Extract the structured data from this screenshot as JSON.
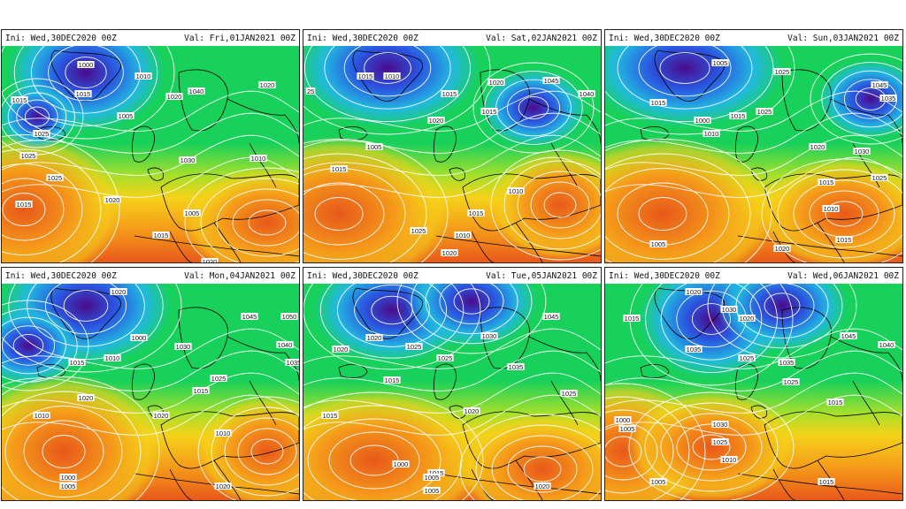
{
  "panels": [
    {
      "init": "Ini:  Wed,30DEC2020  00Z",
      "valid": "Val:  Fri,01JAN2021  00Z",
      "isobars": [
        "1000",
        "1015",
        "1015",
        "1025",
        "1025",
        "1010",
        "1020",
        "1040",
        "1020",
        "1025",
        "1020",
        "1030",
        "1010",
        "1005",
        "1015",
        "1020",
        "1015",
        "1005"
      ]
    },
    {
      "init": "Ini:  Wed,30DEC2020  00Z",
      "valid": "Val:  Sat,02JAN2021  00Z",
      "isobars": [
        "1015",
        "1010",
        "1015",
        "1020",
        "1045",
        "1040",
        "1020",
        "1015",
        "1005",
        "1015",
        "1010",
        "1015",
        "1010",
        "1025",
        "1020",
        "25"
      ]
    },
    {
      "init": "Ini:  Wed,30DEC2020  00Z",
      "valid": "Val:  Sun,03JAN2021  00Z",
      "isobars": [
        "1005",
        "1025",
        "1045",
        "1035",
        "1015",
        "1000",
        "1010",
        "1015",
        "1025",
        "1020",
        "1030",
        "1025",
        "1015",
        "1010",
        "1005",
        "1020",
        "1010",
        "1015"
      ]
    },
    {
      "init": "Ini:  Wed,30DEC2020  00Z",
      "valid": "Val:  Mon,04JAN2021  00Z",
      "isobars": [
        "1020",
        "1045",
        "1050",
        "1040",
        "1035",
        "1030",
        "1000",
        "1015",
        "1010",
        "1020",
        "1015",
        "1020",
        "1025",
        "1010",
        "1010",
        "1000",
        "1005",
        "1020"
      ]
    },
    {
      "init": "Ini:  Wed,30DEC2020  00Z",
      "valid": "Val:  Tue,05JAN2021  00Z",
      "isobars": [
        "1045",
        "1020",
        "1020",
        "1030",
        "1025",
        "1035",
        "1015",
        "1025",
        "1020",
        "1025",
        "1015",
        "1000",
        "1015",
        "1005",
        "1020",
        "1005"
      ]
    },
    {
      "init": "Ini:  Wed,30DEC2020  00Z",
      "valid": "Val:  Wed,06JAN2021  00Z",
      "isobars": [
        "1020",
        "1030",
        "1020",
        "1015",
        "1035",
        "1045",
        "1040",
        "1025",
        "1035",
        "1025",
        "1030",
        "1015",
        "1000",
        "1005",
        "1025",
        "1010",
        "1005",
        "1015"
      ]
    }
  ],
  "colors": {
    "low_deep": "#4b0b8c",
    "low": "#2a56e0",
    "mid_low": "#22b8e0",
    "mid": "#18d15a",
    "mid_high": "#a8e02a",
    "high": "#f5d21a",
    "higher": "#f59a1a",
    "highest": "#e8581a",
    "isobar": "#ffffff",
    "coast": "#000000"
  }
}
